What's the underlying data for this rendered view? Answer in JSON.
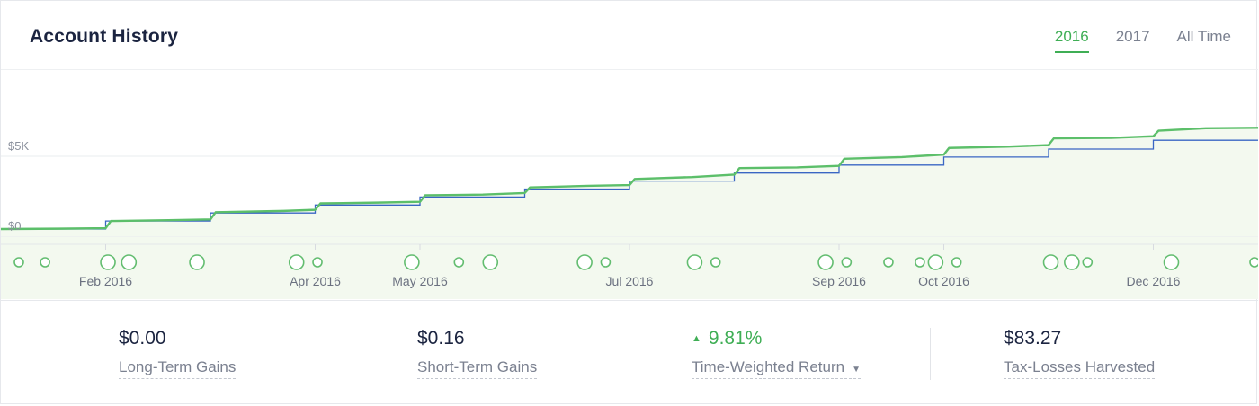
{
  "header": {
    "title": "Account History",
    "tabs": [
      {
        "label": "2016",
        "active": true
      },
      {
        "label": "2017",
        "active": false
      },
      {
        "label": "All Time",
        "active": false
      }
    ]
  },
  "chart_data": {
    "type": "line",
    "ylabel": "",
    "yticks": [
      "$0",
      "$5K"
    ],
    "ytick_values": [
      0,
      5000
    ],
    "ylim": [
      0,
      10000
    ],
    "xlim": [
      0,
      12
    ],
    "grid": true,
    "x_tick_labels": [
      "Feb 2016",
      "Apr 2016",
      "May 2016",
      "Jul 2016",
      "Sep 2016",
      "Oct 2016",
      "Dec 2016"
    ],
    "x_tick_values": [
      1,
      3,
      4,
      6,
      8,
      9,
      11
    ],
    "colors": {
      "account_value": "#5cbf6a",
      "net_deposits": "#3a66c4",
      "fill": "#f3f9ef",
      "markers": "#63bd70"
    },
    "series": [
      {
        "key": "account_value",
        "x": [
          0,
          0.55,
          1.0,
          1.05,
          1.6,
          2.0,
          2.05,
          2.7,
          3.0,
          3.05,
          3.6,
          4.0,
          4.05,
          4.6,
          5.0,
          5.05,
          5.6,
          6.0,
          6.05,
          6.6,
          7.0,
          7.05,
          7.6,
          8.0,
          8.05,
          8.6,
          9.0,
          9.05,
          9.6,
          10.0,
          10.05,
          10.6,
          11.0,
          11.05,
          11.5,
          12
        ],
        "y": [
          450,
          470,
          500,
          950,
          1000,
          1050,
          1500,
          1580,
          1650,
          2050,
          2100,
          2150,
          2560,
          2600,
          2700,
          3050,
          3150,
          3200,
          3580,
          3700,
          3850,
          4260,
          4300,
          4400,
          4840,
          4950,
          5100,
          5520,
          5600,
          5700,
          6120,
          6150,
          6250,
          6600,
          6750,
          6780
        ]
      },
      {
        "key": "net_deposits",
        "x": [
          0,
          1.0,
          1.0,
          2.0,
          2.0,
          3.0,
          3.0,
          4.0,
          4.0,
          5.0,
          5.0,
          6.0,
          6.0,
          7.0,
          7.0,
          8.0,
          8.0,
          9.0,
          9.0,
          10.0,
          10.0,
          11.0,
          11.0,
          12
        ],
        "y": [
          450,
          450,
          950,
          950,
          1450,
          1450,
          1950,
          1950,
          2450,
          2450,
          2950,
          2950,
          3450,
          3450,
          3950,
          3950,
          4450,
          4450,
          4950,
          4950,
          5450,
          5450,
          6000,
          6000
        ]
      }
    ],
    "markers": {
      "x": [
        0.0,
        0.25,
        0.85,
        1.05,
        1.7,
        2.65,
        2.85,
        3.75,
        4.2,
        4.5,
        5.4,
        5.6,
        6.45,
        6.65,
        7.7,
        7.9,
        8.3,
        8.6,
        8.75,
        8.95,
        9.85,
        10.05,
        10.2,
        11.0,
        11.95
      ],
      "r": [
        5,
        5,
        8,
        8,
        8,
        8,
        5,
        8,
        5,
        8,
        8,
        5,
        8,
        5,
        8,
        5,
        5,
        5,
        8,
        5,
        8,
        8,
        5,
        8,
        5
      ]
    }
  },
  "stats": [
    {
      "value": "$0.00",
      "label": "Long-Term Gains"
    },
    {
      "value": "$0.16",
      "label": "Short-Term Gains"
    },
    {
      "value": "9.81%",
      "label": "Time-Weighted Return",
      "up": true,
      "dropdown": true
    },
    {
      "value": "$83.27",
      "label": "Tax-Losses Harvested"
    }
  ]
}
